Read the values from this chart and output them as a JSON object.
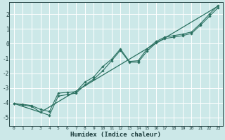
{
  "title": "",
  "xlabel": "Humidex (Indice chaleur)",
  "bg_color": "#cce8e8",
  "grid_color": "#ffffff",
  "line_color": "#2a7060",
  "xlim": [
    -0.5,
    23.5
  ],
  "ylim": [
    -5.6,
    2.8
  ],
  "xticks": [
    0,
    1,
    2,
    3,
    4,
    5,
    6,
    7,
    8,
    9,
    10,
    11,
    12,
    13,
    14,
    15,
    16,
    17,
    18,
    19,
    20,
    21,
    22,
    23
  ],
  "yticks": [
    -5,
    -4,
    -3,
    -2,
    -1,
    0,
    1,
    2
  ],
  "line1_x": [
    0,
    1,
    2,
    3,
    4,
    5,
    6,
    7,
    8,
    9,
    10,
    11,
    12,
    13,
    14,
    15,
    16,
    17,
    18,
    19,
    20,
    21,
    22,
    23
  ],
  "line1_y": [
    -4.05,
    -4.15,
    -4.25,
    -4.65,
    -4.85,
    -3.55,
    -3.45,
    -3.35,
    -2.8,
    -2.4,
    -1.85,
    -1.15,
    -0.45,
    -1.25,
    -1.25,
    -0.5,
    0.05,
    0.35,
    0.45,
    0.55,
    0.7,
    1.25,
    1.85,
    2.45
  ],
  "line2_x": [
    0,
    1,
    2,
    3,
    4,
    5,
    6,
    7,
    8,
    9,
    10,
    11,
    12,
    13,
    14,
    15,
    16,
    17,
    18,
    19,
    20,
    21,
    22,
    23
  ],
  "line2_y": [
    -4.05,
    -4.1,
    -4.2,
    -4.45,
    -4.6,
    -3.35,
    -3.3,
    -3.25,
    -2.6,
    -2.25,
    -1.55,
    -1.05,
    -0.35,
    -1.2,
    -1.15,
    -0.35,
    0.15,
    0.45,
    0.55,
    0.65,
    0.8,
    1.35,
    2.0,
    2.6
  ],
  "line3_x": [
    0,
    3,
    23
  ],
  "line3_y": [
    -4.05,
    -4.65,
    2.55
  ]
}
